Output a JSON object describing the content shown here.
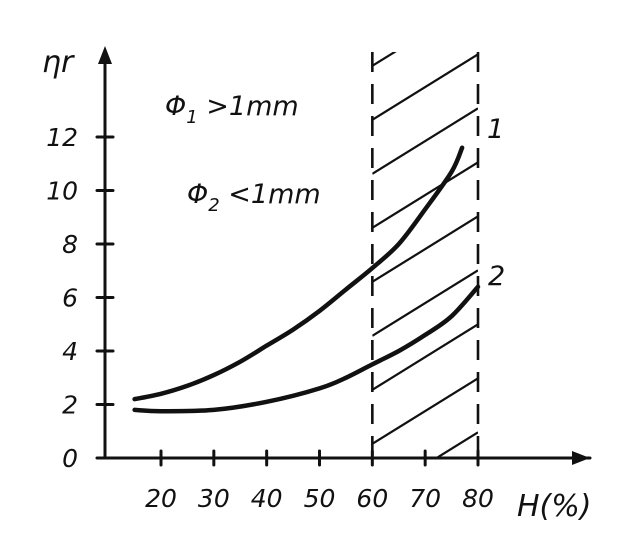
{
  "chart_data": {
    "type": "line",
    "xlabel": "H(%)",
    "ylabel": "ηr",
    "xlim": [
      10,
      85
    ],
    "ylim": [
      0,
      14
    ],
    "xticks": [
      20,
      30,
      40,
      50,
      60,
      70,
      80
    ],
    "yticks": [
      0,
      2,
      4,
      6,
      8,
      10,
      12
    ],
    "grid": false,
    "shaded_region": {
      "x": [
        60,
        80
      ],
      "pattern": "diagonal-hatch",
      "boundary": "dashed"
    },
    "annotations": [
      {
        "text": "Φ1 >1mm",
        "main": "Φ",
        "sub": "1",
        "rest": " >1mm"
      },
      {
        "text": "Φ2 <1mm",
        "main": "Φ",
        "sub": "2",
        "rest": " <1mm"
      }
    ],
    "series": [
      {
        "name": "1",
        "x": [
          15,
          20,
          25,
          30,
          35,
          40,
          45,
          50,
          55,
          60,
          65,
          70,
          75,
          77
        ],
        "y": [
          2.2,
          2.4,
          2.7,
          3.1,
          3.6,
          4.2,
          4.8,
          5.5,
          6.3,
          7.1,
          8.0,
          9.3,
          10.7,
          11.6
        ]
      },
      {
        "name": "2",
        "x": [
          15,
          20,
          30,
          40,
          50,
          55,
          60,
          65,
          70,
          75,
          80
        ],
        "y": [
          1.8,
          1.75,
          1.8,
          2.1,
          2.6,
          3.0,
          3.5,
          4.0,
          4.6,
          5.3,
          6.4
        ]
      }
    ]
  }
}
